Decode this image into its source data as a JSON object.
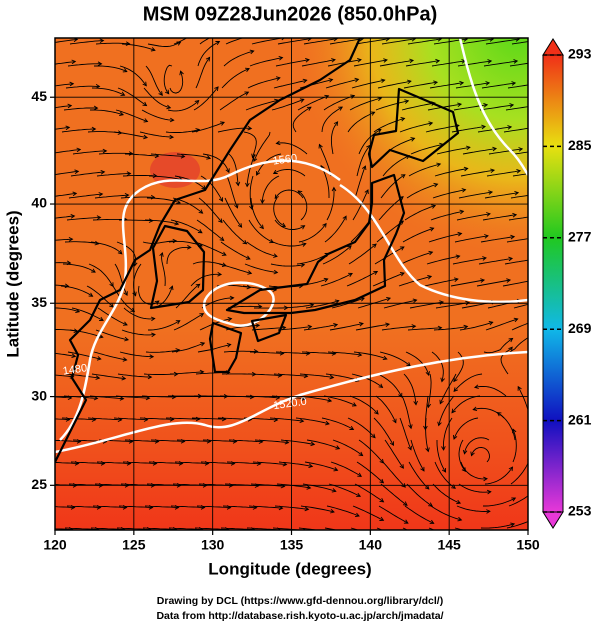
{
  "title": "MSM 09Z28Jun2026 (850.0hPa)",
  "chart_data": {
    "type": "map",
    "projection": "mercator",
    "xlabel": "Longitude (degrees)",
    "ylabel": "Latitude  (degrees)",
    "xlim": [
      120,
      150
    ],
    "ylim": [
      22.4,
      47.6
    ],
    "xticks": [
      120,
      125,
      130,
      135,
      140,
      145,
      150
    ],
    "yticks": [
      25,
      30,
      35,
      40,
      45
    ],
    "grid": true,
    "colorbar": {
      "lim": [
        253,
        293
      ],
      "ticks": [
        253,
        261,
        269,
        277,
        285,
        293
      ],
      "colors": [
        "#e838d8",
        "#1010c0",
        "#10b8e8",
        "#20c820",
        "#e8e010",
        "#f03018"
      ]
    },
    "annotations": [
      "1520.0",
      "1560",
      "1480"
    ]
  },
  "footer": [
    "Drawing by DCL (https://www.gfd-dennou.org/library/dcl/)",
    "Data from http://database.rish.kyoto-u.ac.jp/arch/jmadata/"
  ]
}
